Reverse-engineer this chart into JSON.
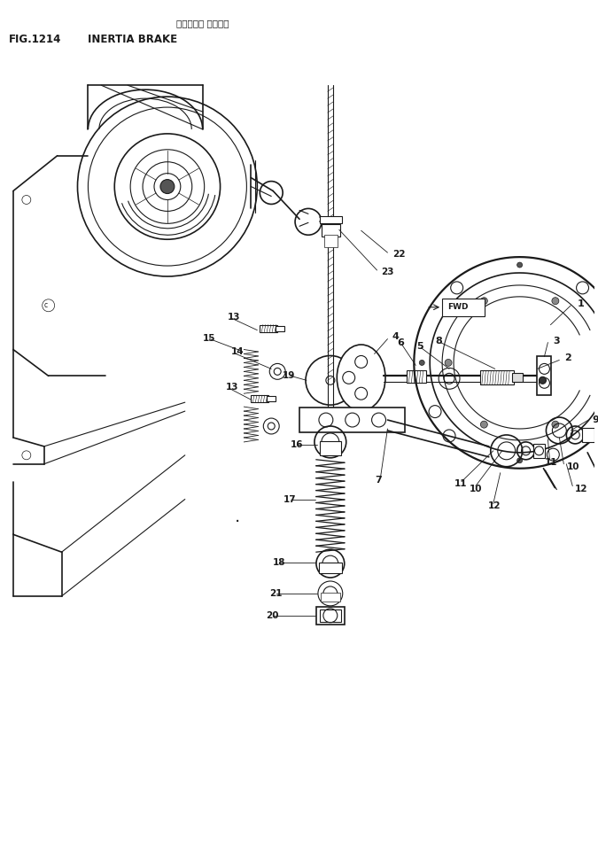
{
  "title_japanese": "イナーシャ ブレーキ",
  "title_english": "INERTIA BRAKE",
  "fig_label": "FIG.1214",
  "bg_color": "#ffffff",
  "line_color": "#1a1a1a",
  "fig_width": 6.75,
  "fig_height": 9.64,
  "dpi": 100
}
